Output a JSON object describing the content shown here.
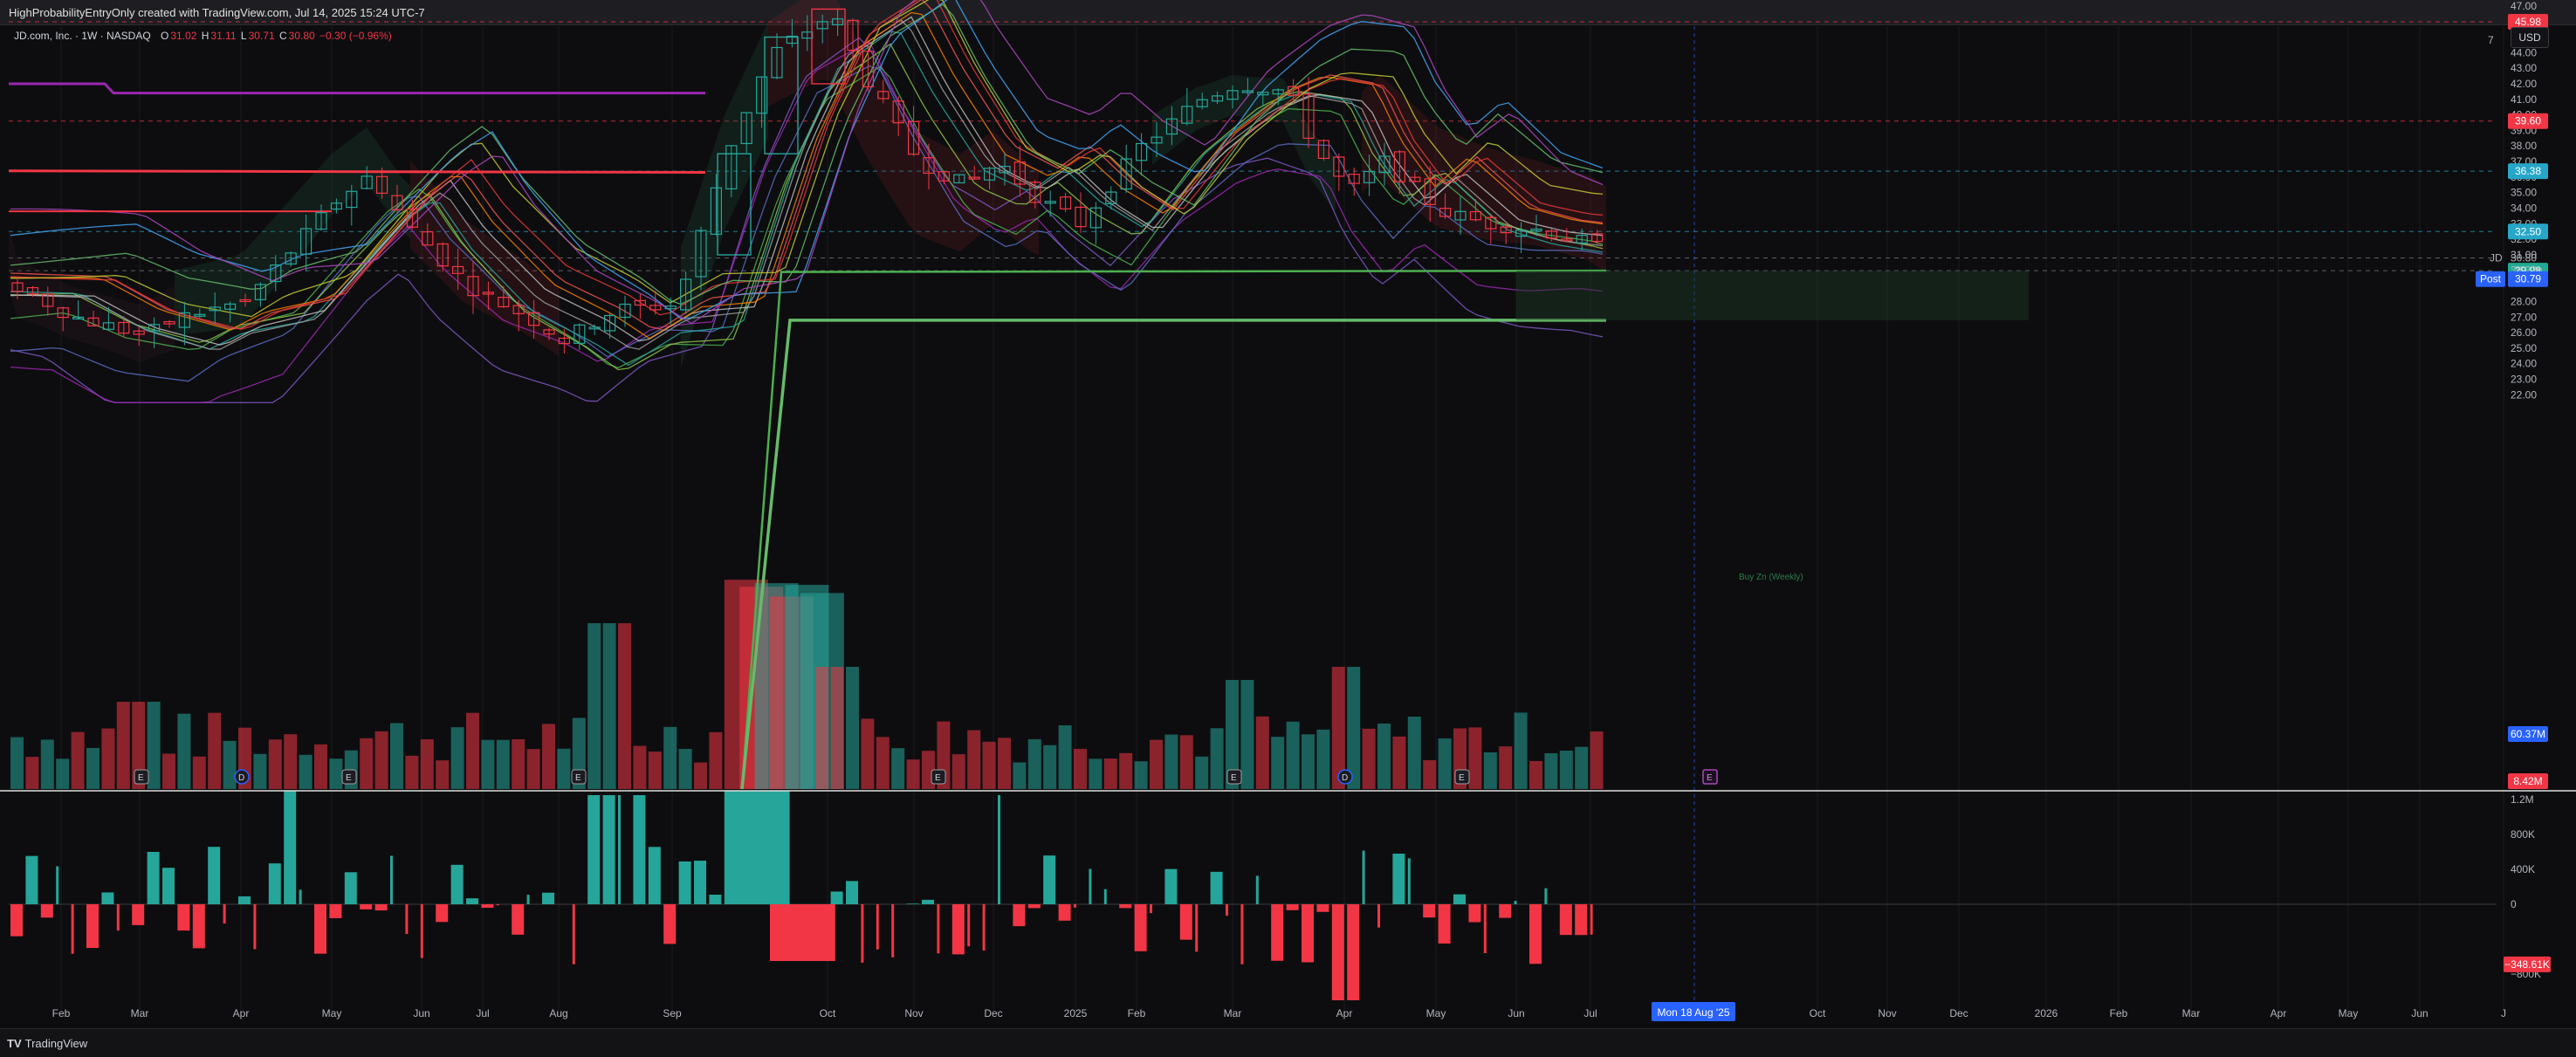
{
  "header": {
    "attribution": "HighProbabilityEntryOnly created with TradingView.com, Jul 14, 2025 15:24 UTC-7"
  },
  "legend": {
    "symbol": "JD.com, Inc. · 1W · NASDAQ",
    "open_label": "O",
    "open": "31.02",
    "high_label": "H",
    "high": "31.11",
    "low_label": "L",
    "low": "30.71",
    "close_label": "C",
    "close": "30.80",
    "change": "−0.30 (−0.96%)"
  },
  "toolbar": {
    "currency": "USD",
    "scale_hint": "7"
  },
  "price_axis": {
    "ticks": [
      "47.00",
      "45.00",
      "44.00",
      "43.00",
      "42.00",
      "41.00",
      "40.00",
      "39.00",
      "38.00",
      "37.00",
      "36.00",
      "35.00",
      "34.00",
      "33.00",
      "32.00",
      "31.00",
      "28.00",
      "27.00",
      "26.00",
      "25.00",
      "24.00",
      "23.00",
      "22.00"
    ],
    "tick_values": [
      47,
      45,
      44,
      43,
      42,
      41,
      40,
      39,
      38,
      37,
      36,
      35,
      34,
      33,
      32,
      31,
      28,
      27,
      26,
      25,
      24,
      23,
      22
    ]
  },
  "price_badges": [
    {
      "text": "45.98",
      "value": 45.98,
      "color": "#f23645"
    },
    {
      "text": "39.60",
      "value": 39.6,
      "color": "#f23645"
    },
    {
      "text": "36.38",
      "value": 36.38,
      "color": "#26a6c8"
    },
    {
      "text": "32.50",
      "value": 32.5,
      "color": "#26a6c8"
    },
    {
      "text": "29.98",
      "value": 29.98,
      "color": "#22ab94"
    }
  ],
  "last_price": {
    "symbol": "JD",
    "price": "30.80",
    "countdown": "3d 22h",
    "post_label": "Post",
    "post_price": "30.79"
  },
  "volume_badges": {
    "volume_ma": "60.37M",
    "volume": "8.42M"
  },
  "osc_axis": {
    "ticks": [
      "1.2M",
      "800K",
      "400K",
      "0",
      "−800K"
    ],
    "tick_values": [
      1200000,
      800000,
      400000,
      0,
      -800000
    ],
    "current": "−348.61K"
  },
  "buy_zone": {
    "label": "Buy Zn (Weekly)"
  },
  "time_axis": {
    "ticks": [
      "Feb",
      "Mar",
      "Apr",
      "May",
      "Jun",
      "Jul",
      "Aug",
      "Sep",
      "Oct",
      "Nov",
      "Dec",
      "2025",
      "Feb",
      "Mar",
      "Apr",
      "May",
      "Jun",
      "Jul",
      "Oct",
      "Nov",
      "Dec",
      "2026",
      "Feb",
      "Mar",
      "Apr",
      "May",
      "Jun",
      "J"
    ],
    "cursor_label": "Mon 18 Aug '25"
  },
  "markers": {
    "earnings_symbol": "E",
    "dividend_symbol": "D"
  },
  "colors": {
    "up": "#26a69a",
    "down": "#f23645",
    "bg": "#0d0d0f",
    "grid": "#1c1c22",
    "accent": "#2962ff"
  },
  "footer": {
    "brand": "TradingView",
    "logo": "TV"
  }
}
